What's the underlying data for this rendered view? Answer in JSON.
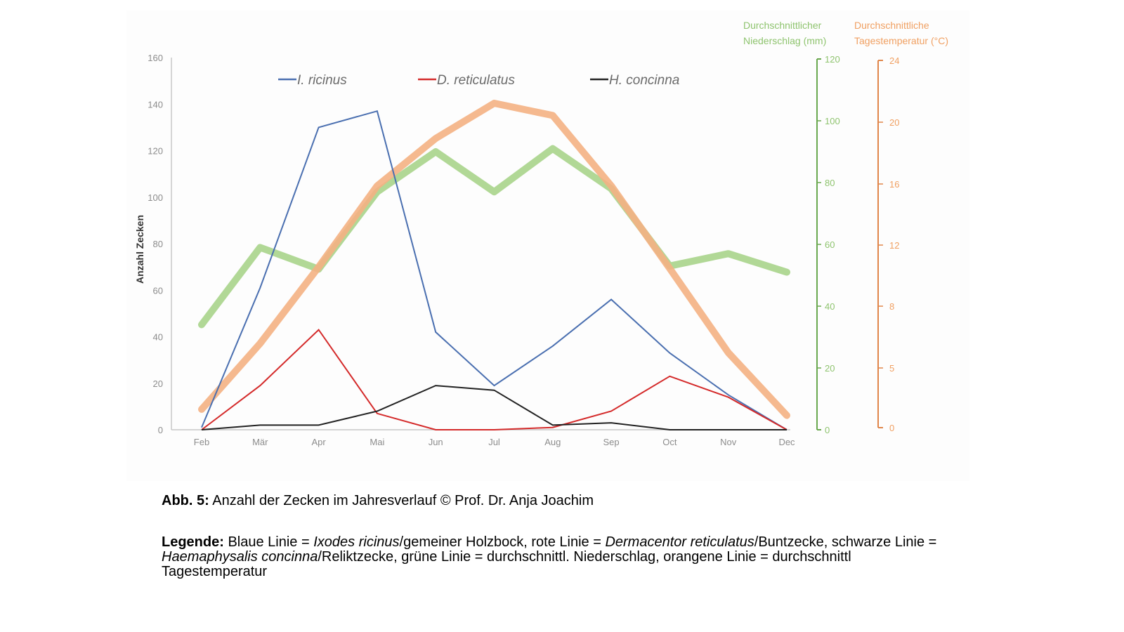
{
  "chart_data": {
    "type": "line",
    "categories": [
      "Feb",
      "Mär",
      "Apr",
      "Mai",
      "Jun",
      "Jul",
      "Aug",
      "Sep",
      "Oct",
      "Nov",
      "Dec"
    ],
    "ylabel": "Anzahl Zecken",
    "ylim": [
      0,
      160
    ],
    "yticks": [
      "0",
      "20",
      "40",
      "60",
      "80",
      "100",
      "120",
      "140",
      "160"
    ],
    "y2_title_line1": "Durchschnittlicher",
    "y2_title_line2": "Niederschlag (mm)",
    "y2lim": [
      0,
      120
    ],
    "y2ticks": [
      "0",
      "20",
      "40",
      "60",
      "80",
      "100",
      "120"
    ],
    "y3_title_line1": "Durchschnittliche",
    "y3_title_line2": "Tagestemperatur (°C)",
    "y3lim": [
      0,
      24
    ],
    "y3ticks": [
      "0",
      "5",
      "8",
      "12",
      "16",
      "20",
      "24"
    ],
    "series": [
      {
        "name": "I. ricinus",
        "axis": "left",
        "color": "#4a6fb0",
        "values": [
          1,
          61,
          130,
          137,
          42,
          19,
          36,
          56,
          33,
          15,
          0
        ]
      },
      {
        "name": "D. reticulatus",
        "axis": "left",
        "color": "#d42a2a",
        "values": [
          0,
          19,
          43,
          7,
          0,
          0,
          1,
          8,
          23,
          14,
          0
        ]
      },
      {
        "name": "H. concinna",
        "axis": "left",
        "color": "#222222",
        "values": [
          0,
          2,
          2,
          8,
          19,
          17,
          2,
          3,
          0,
          0,
          0
        ]
      },
      {
        "axis": "precip",
        "color": "#a9d48b",
        "values": [
          34,
          59,
          52,
          77,
          90,
          77,
          91,
          78,
          53,
          57,
          51
        ]
      },
      {
        "axis": "temp",
        "color": "#f4b183",
        "values": [
          1.2,
          5.5,
          10.5,
          15.8,
          18.9,
          21.2,
          20.4,
          15.8,
          10.4,
          4.9,
          0.8
        ]
      }
    ],
    "legend_position": "top",
    "grid": false
  },
  "caption": {
    "bold": "Abb. 5:",
    "text": " Anzahl der Zecken im Jahresverlauf © Prof. Dr. Anja Joachim"
  },
  "legend_desc": {
    "bold": "Legende:",
    "t1": " Blaue Linie = ",
    "i1": "Ixodes ricinus",
    "t2": "/gemeiner Holzbock, rote Linie = ",
    "i2": "Dermacentor reticulatus",
    "t3": "/Buntzecke, schwarze Linie = ",
    "i3": "Haemaphysalis concinna",
    "t4": "/Reliktzecke, grüne Linie = durchschnittl. Niederschlag, orangene Linie = durchschnittl Tagestemperatur"
  }
}
